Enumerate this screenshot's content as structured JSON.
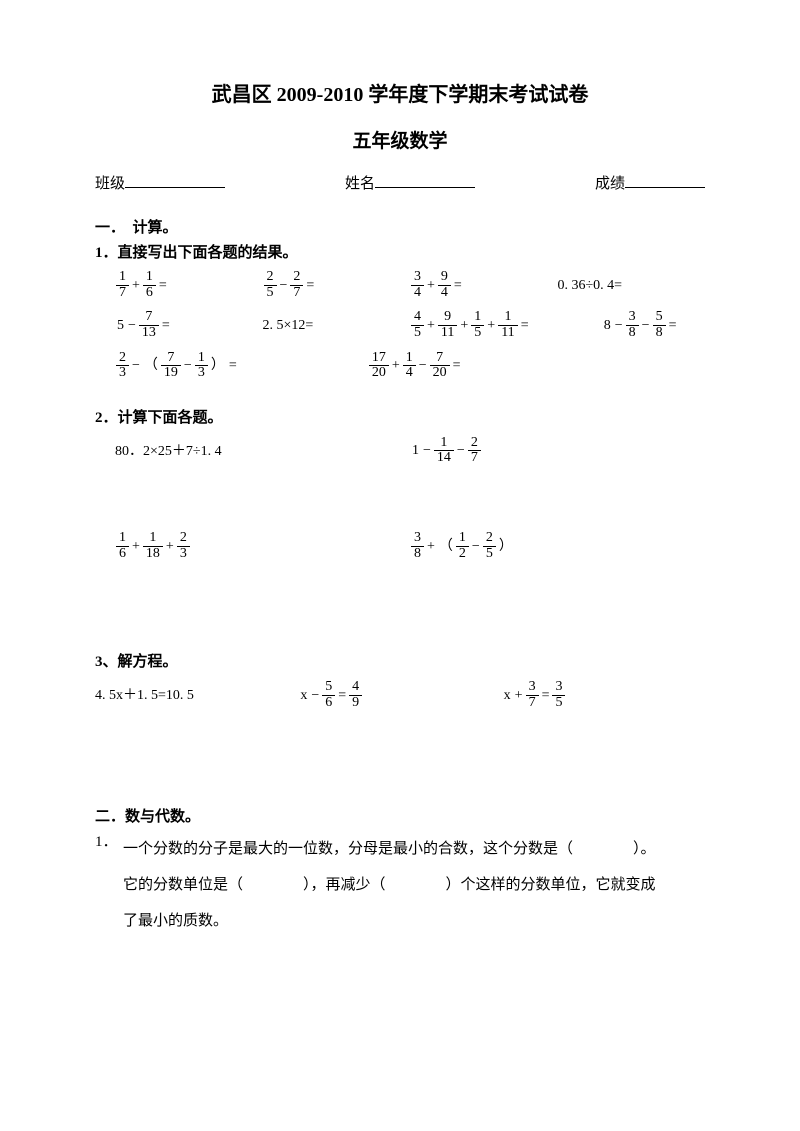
{
  "title_main": "武昌区 2009-2010 学年度下学期末考试试卷",
  "title_sub": "五年级数学",
  "info": {
    "class_label": "班级",
    "name_label": "姓名",
    "score_label": "成绩"
  },
  "section1": {
    "heading": "一．　计算。",
    "q1_head": "1．直接写出下面各题的结果。",
    "r1": {
      "c1": {
        "a": "1",
        "b": "7",
        "op": "+",
        "c": "1",
        "d": "6",
        "eq": "="
      },
      "c2": {
        "a": "2",
        "b": "5",
        "op": "−",
        "c": "2",
        "d": "7",
        "eq": "="
      },
      "c3": {
        "a": "3",
        "b": "4",
        "op": "+",
        "c": "9",
        "d": "4",
        "eq": "="
      },
      "c4": "0. 36÷0. 4="
    },
    "r2": {
      "c1": {
        "pre": "5",
        "op": "−",
        "a": "7",
        "b": "13",
        "eq": "="
      },
      "c2": "2. 5×12=",
      "c3": {
        "a": "4",
        "b": "5",
        "op": "+",
        "c": "9",
        "d": "11",
        "op2": "+",
        "e": "1",
        "f": "5",
        "op3": "+",
        "g": "1",
        "h": "11",
        "eq": "="
      },
      "c4": {
        "pre": "8",
        "op": "−",
        "a": "3",
        "b": "8",
        "op2": "−",
        "c": "5",
        "d": "8",
        "eq": "="
      }
    },
    "r3": {
      "c1": {
        "a": "2",
        "b": "3",
        "op": "−",
        "lp": "（",
        "c": "7",
        "d": "19",
        "op2": "−",
        "e": "1",
        "f": "3",
        "rp": "）",
        "eq": "="
      },
      "c2": {
        "a": "17",
        "b": "20",
        "op": "+",
        "c": "1",
        "d": "4",
        "op2": "−",
        "e": "7",
        "f": "20",
        "eq": "="
      }
    },
    "q2_head": "2．计算下面各题。",
    "r4": {
      "c1": "80．2×25＋7÷1. 4",
      "c2": {
        "pre": "1",
        "op": "−",
        "a": "1",
        "b": "14",
        "op2": "−",
        "c": "2",
        "d": "7"
      }
    },
    "r5": {
      "c1": {
        "a": "1",
        "b": "6",
        "op": "+",
        "c": "1",
        "d": "18",
        "op2": "+",
        "e": "2",
        "f": "3"
      },
      "c2": {
        "a": "3",
        "b": "8",
        "op": "+",
        "lp": "（",
        "c": "1",
        "d": "2",
        "op2": "−",
        "e": "2",
        "f": "5",
        "rp": "）"
      }
    },
    "q3_head": "3、解方程。",
    "r6": {
      "c1": "4. 5x＋1. 5=10. 5",
      "c2": {
        "pre": "x",
        "op": "−",
        "a": "5",
        "b": "6",
        "eq": "=",
        "c": "4",
        "d": "9"
      },
      "c3": {
        "pre": "x",
        "op": "+",
        "a": "3",
        "b": "7",
        "eq": "=",
        "c": "3",
        "d": "5"
      }
    }
  },
  "section2": {
    "heading": "二．数与代数。",
    "q1_num": "1．",
    "q1_text_a": "一个分数的分子是最大的一位数，分母是最小的合数，这个分数是（　　　　）。",
    "q1_text_b": "它的分数单位是（　　　　），再减少（　　　　）个这样的分数单位，它就变成",
    "q1_text_c": "了最小的质数。"
  }
}
